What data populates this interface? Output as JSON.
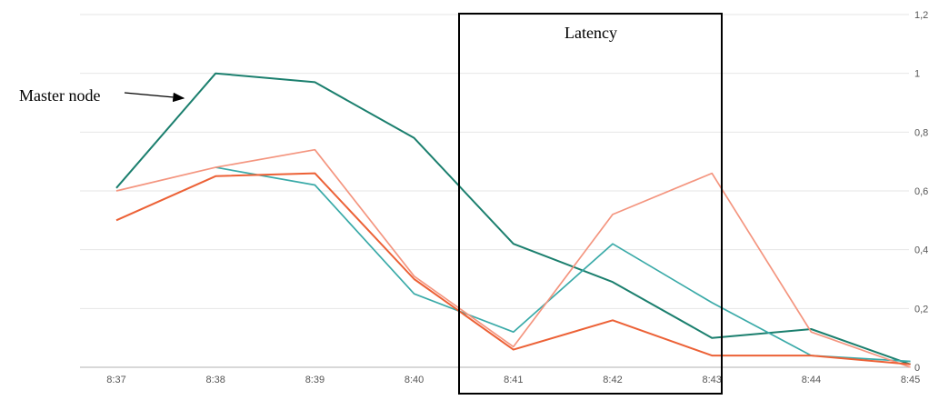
{
  "chart_data": {
    "type": "line",
    "title": "",
    "xlabel": "",
    "ylabel": "",
    "categories": [
      "8:37",
      "8:38",
      "8:39",
      "8:40",
      "8:41",
      "8:42",
      "8:43",
      "8:44",
      "8:45"
    ],
    "ylim": [
      0,
      1.2
    ],
    "y_ticks": [
      "0",
      "0,2",
      "0,4",
      "0,6",
      "0,8",
      "1",
      "1,2"
    ],
    "y_tick_values": [
      0,
      0.2,
      0.4,
      0.6,
      0.8,
      1.0,
      1.2
    ],
    "y_axis_side": "right",
    "grid": true,
    "series": [
      {
        "color": "#1b7f6e",
        "values": [
          0.61,
          1.0,
          0.97,
          0.78,
          0.42,
          0.29,
          0.1,
          0.13,
          0.01
        ]
      },
      {
        "color": "#3aaaa8",
        "values": [
          null,
          0.68,
          0.62,
          0.25,
          0.12,
          0.42,
          0.22,
          0.04,
          0.02
        ]
      },
      {
        "color": "#f4957f",
        "values": [
          0.6,
          0.68,
          0.74,
          0.31,
          0.07,
          0.52,
          0.66,
          0.12,
          0.0
        ]
      },
      {
        "color": "#ec6136",
        "values": [
          0.5,
          0.65,
          0.66,
          0.3,
          0.06,
          0.16,
          0.04,
          0.04,
          0.01
        ]
      }
    ],
    "annotations": {
      "master_node": {
        "text": "Master node"
      },
      "latency": {
        "text": "Latency"
      }
    }
  }
}
